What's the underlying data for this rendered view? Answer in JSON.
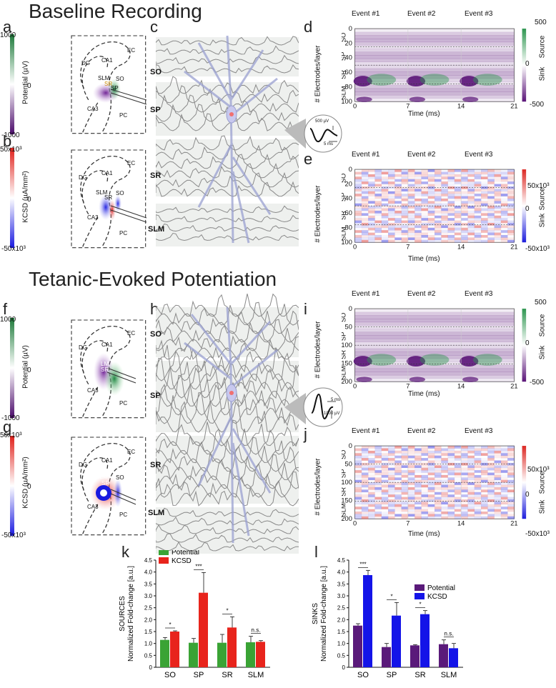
{
  "titles": {
    "baseline": "Baseline Recording",
    "tetanic": "Tetanic-Evoked Potentiation"
  },
  "panel_letters": {
    "a": "a",
    "b": "b",
    "c": "c",
    "d": "d",
    "e": "e",
    "f": "f",
    "g": "g",
    "h": "h",
    "i": "i",
    "j": "j",
    "k": "k",
    "l": "l"
  },
  "anat": {
    "potential_label": "Potential (µV)",
    "kcsd_label": "KCSD (µA/mm²)",
    "pot_max": "1000",
    "pot_mid": "0",
    "pot_min": "-1000",
    "kcsd_max": "50x10³",
    "kcsd_mid": "0",
    "kcsd_min": "-50x10³",
    "regions": {
      "ec": "EC",
      "ca1": "CA1",
      "dg": "DG",
      "ca3": "CA3",
      "pc": "PC",
      "slm": "SLM",
      "sr": "SR",
      "sp": "SP",
      "so": "SO"
    },
    "f_regions": {
      "lm": "LM",
      "sr": "SR"
    }
  },
  "layers": {
    "so": "SO",
    "sp": "SP",
    "sr": "SR",
    "slm": "SLM"
  },
  "spike_inset": {
    "baseline_amp": "500 µV",
    "baseline_time": "5 ms",
    "tetanic_time": "5 ms",
    "tetanic_amp": "1000 µV"
  },
  "heatmaps": {
    "events": [
      "Event #1",
      "Event #2",
      "Event #3"
    ],
    "ylabel": "# Electrodes/layer",
    "xlabel": "Time (ms)",
    "xticks": [
      "0",
      "7",
      "14",
      "21"
    ],
    "d": {
      "yticks": [
        "0",
        "20",
        "40",
        "60",
        "80",
        "100"
      ],
      "cb_max": "500",
      "cb_mid": "0",
      "cb_min": "-500"
    },
    "e": {
      "yticks": [
        "0",
        "20",
        "40",
        "60",
        "80",
        "100"
      ],
      "cb_max": "50x10³",
      "cb_mid": "0",
      "cb_min": "-50x10³"
    },
    "i": {
      "yticks": [
        "0",
        "50",
        "100",
        "150",
        "200"
      ],
      "cb_max": "500",
      "cb_mid": "0",
      "cb_min": "-500"
    },
    "j": {
      "yticks": [
        "0",
        "50",
        "100",
        "150",
        "200"
      ],
      "cb_max": "50x10³",
      "cb_mid": "0",
      "cb_min": "-50x10³"
    },
    "source": "Source",
    "sink": "Sink"
  },
  "chart_data": [
    {
      "type": "bar",
      "title": "SOURCES",
      "ylabel": "SOURCES Normalized Fold-change [a.u.]",
      "ylabel_top": "SOURCES",
      "ylabel_bottom": "Normalized Fold-change [a.u.]",
      "categories": [
        "SO",
        "SP",
        "SR",
        "SLM"
      ],
      "series": [
        {
          "name": "Potential",
          "color": "#3aa335",
          "values": [
            1.15,
            1.03,
            1.03,
            1.05
          ],
          "errors": [
            0.1,
            0.18,
            0.35,
            0.25
          ]
        },
        {
          "name": "KCSD",
          "color": "#e8241c",
          "values": [
            1.5,
            3.13,
            1.67,
            1.07
          ],
          "errors": [
            0.03,
            0.85,
            0.45,
            0.05
          ]
        }
      ],
      "significance": [
        "*",
        "***",
        "*",
        "n.s."
      ],
      "ylim": [
        0,
        4.5
      ],
      "yticks": [
        "0",
        "0.5",
        "1.0",
        "1.5",
        "2.0",
        "2.5",
        "3.0",
        "3.5",
        "4.0",
        "4.5"
      ]
    },
    {
      "type": "bar",
      "title": "SINKS",
      "ylabel_top": "SINKS",
      "ylabel_bottom": "Normalized Fold-change [a.u.]",
      "categories": [
        "SO",
        "SP",
        "SR",
        "SLM"
      ],
      "series": [
        {
          "name": "Potential",
          "color": "#5a1a7a",
          "values": [
            1.75,
            0.85,
            0.92,
            0.97
          ],
          "errors": [
            0.08,
            0.15,
            0.03,
            0.18
          ]
        },
        {
          "name": "KCSD",
          "color": "#1414e8",
          "values": [
            3.87,
            2.17,
            2.23,
            0.8
          ],
          "errors": [
            0.2,
            0.55,
            0.15,
            0.2
          ]
        }
      ],
      "significance": [
        "***",
        "*",
        "*",
        "n.s."
      ],
      "ylim": [
        0,
        4.5
      ],
      "yticks": [
        "0",
        "0.5",
        "1.0",
        "1.5",
        "2.0",
        "2.5",
        "3.0",
        "3.5",
        "4.0",
        "4.5"
      ]
    }
  ],
  "colors": {
    "green": "#2e8b3e",
    "purple": "#5b1a78",
    "red": "#e0201a",
    "blue": "#1a1ae0"
  }
}
